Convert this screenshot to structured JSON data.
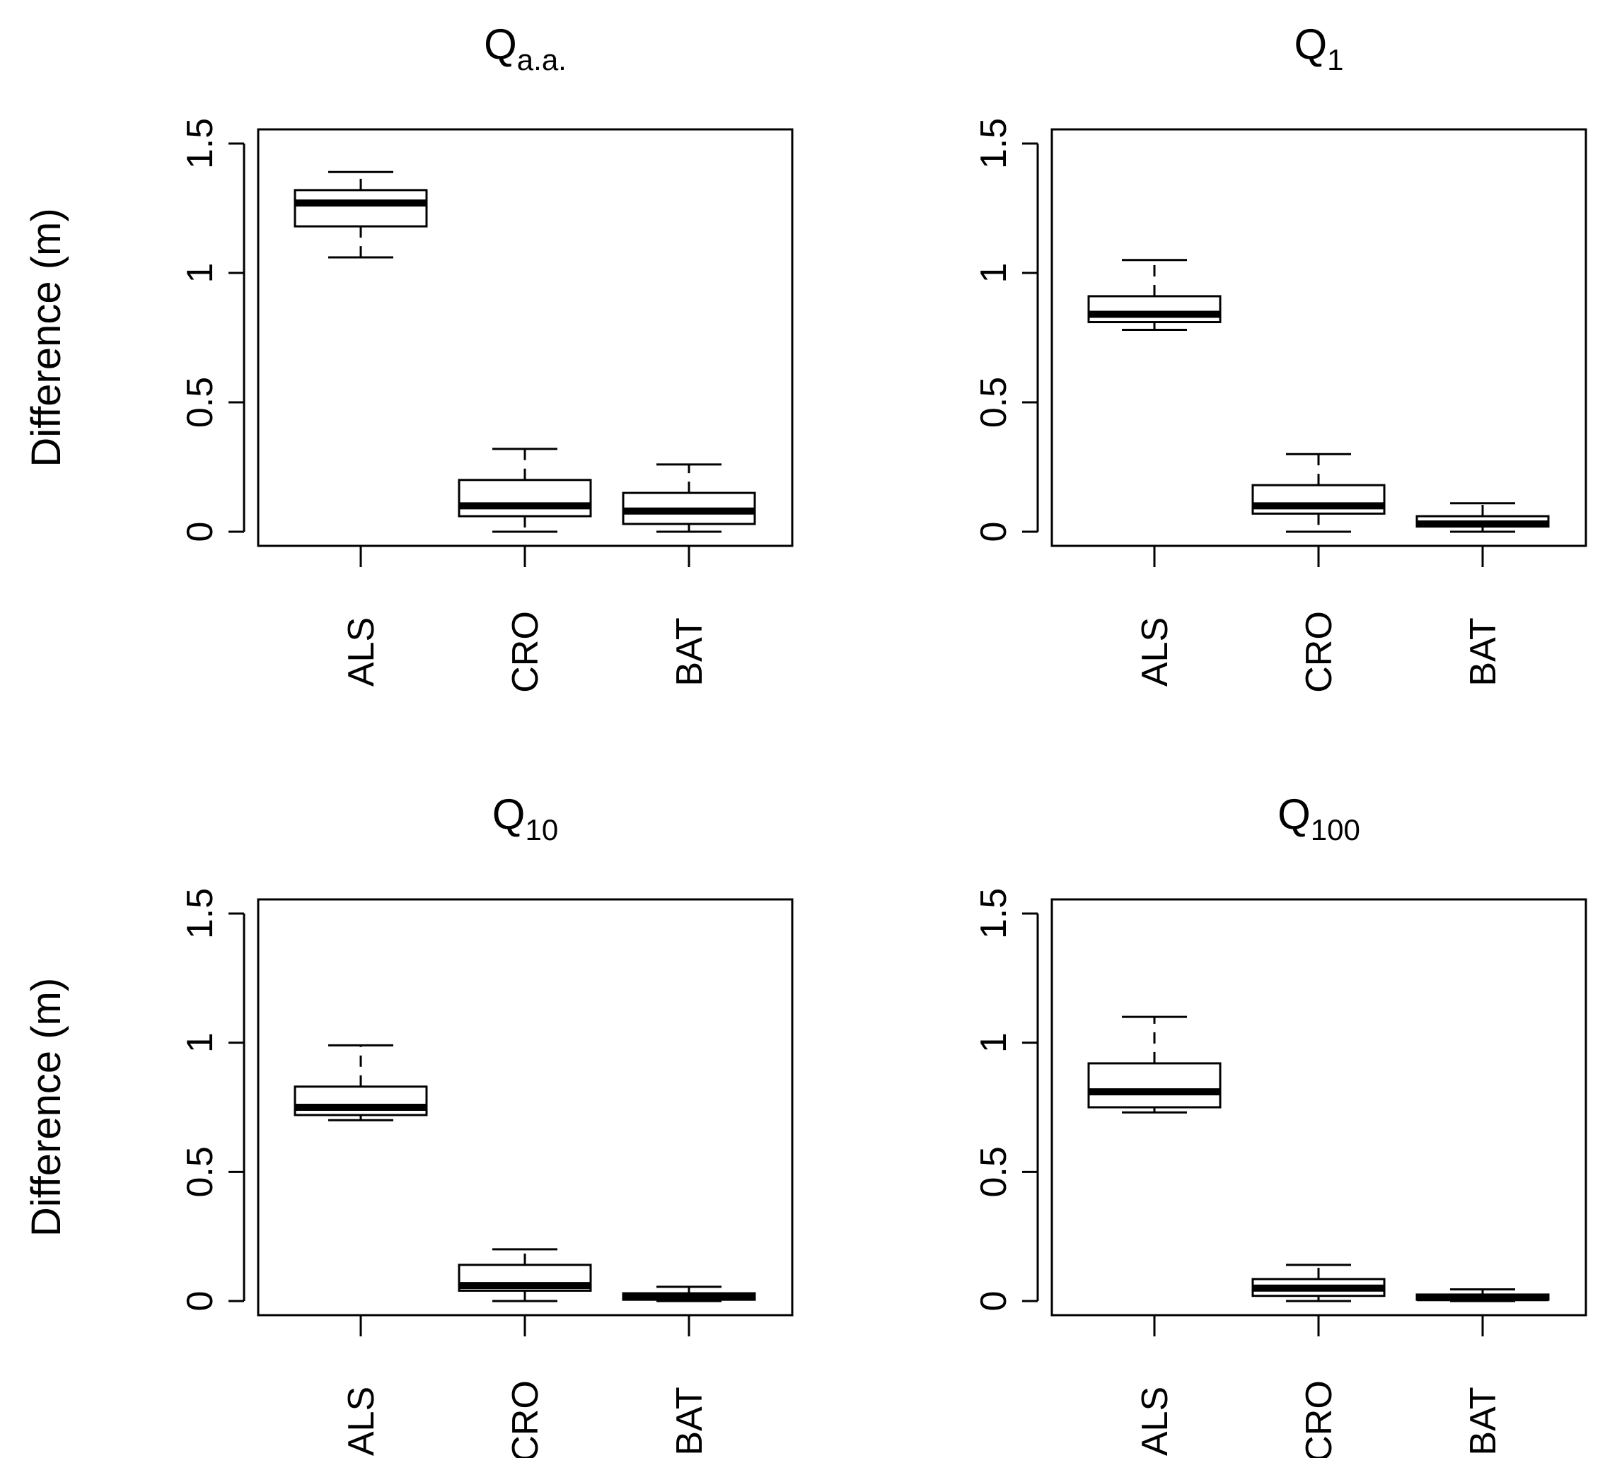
{
  "chart_data": [
    {
      "type": "boxplot",
      "title": {
        "main": "Q",
        "sub": "a.a."
      },
      "ylabel": "Difference (m)",
      "ylim": [
        0,
        1.5
      ],
      "yticks": [
        "0",
        "0.5",
        "1",
        "1.5"
      ],
      "categories": [
        "ALS",
        "CRO",
        "BAT"
      ],
      "boxes": [
        {
          "min": 1.06,
          "q1": 1.18,
          "median": 1.27,
          "q3": 1.32,
          "max": 1.39
        },
        {
          "min": 0.0,
          "q1": 0.06,
          "median": 0.1,
          "q3": 0.2,
          "max": 0.32
        },
        {
          "min": 0.0,
          "q1": 0.03,
          "median": 0.08,
          "q3": 0.15,
          "max": 0.26
        }
      ]
    },
    {
      "type": "boxplot",
      "title": {
        "main": "Q",
        "sub": "1"
      },
      "ylabel": "",
      "ylim": [
        0,
        1.5
      ],
      "yticks": [
        "0",
        "0.5",
        "1",
        "1.5"
      ],
      "categories": [
        "ALS",
        "CRO",
        "BAT"
      ],
      "boxes": [
        {
          "min": 0.78,
          "q1": 0.81,
          "median": 0.84,
          "q3": 0.91,
          "max": 1.05
        },
        {
          "min": 0.0,
          "q1": 0.07,
          "median": 0.1,
          "q3": 0.18,
          "max": 0.3
        },
        {
          "min": 0.0,
          "q1": 0.02,
          "median": 0.03,
          "q3": 0.06,
          "max": 0.11
        }
      ]
    },
    {
      "type": "boxplot",
      "title": {
        "main": "Q",
        "sub": "10"
      },
      "ylabel": "Difference (m)",
      "ylim": [
        0,
        1.5
      ],
      "yticks": [
        "0",
        "0.5",
        "1",
        "1.5"
      ],
      "categories": [
        "ALS",
        "CRO",
        "BAT"
      ],
      "boxes": [
        {
          "min": 0.7,
          "q1": 0.72,
          "median": 0.75,
          "q3": 0.83,
          "max": 0.99
        },
        {
          "min": 0.0,
          "q1": 0.04,
          "median": 0.06,
          "q3": 0.14,
          "max": 0.2
        },
        {
          "min": 0.0,
          "q1": 0.005,
          "median": 0.015,
          "q3": 0.03,
          "max": 0.055
        }
      ]
    },
    {
      "type": "boxplot",
      "title": {
        "main": "Q",
        "sub": "100"
      },
      "ylabel": "",
      "ylim": [
        0,
        1.5
      ],
      "yticks": [
        "0",
        "0.5",
        "1",
        "1.5"
      ],
      "categories": [
        "ALS",
        "CRO",
        "BAT"
      ],
      "boxes": [
        {
          "min": 0.73,
          "q1": 0.75,
          "median": 0.81,
          "q3": 0.92,
          "max": 1.1
        },
        {
          "min": 0.0,
          "q1": 0.02,
          "median": 0.05,
          "q3": 0.085,
          "max": 0.14
        },
        {
          "min": 0.0,
          "q1": 0.005,
          "median": 0.013,
          "q3": 0.025,
          "max": 0.045
        }
      ]
    }
  ]
}
